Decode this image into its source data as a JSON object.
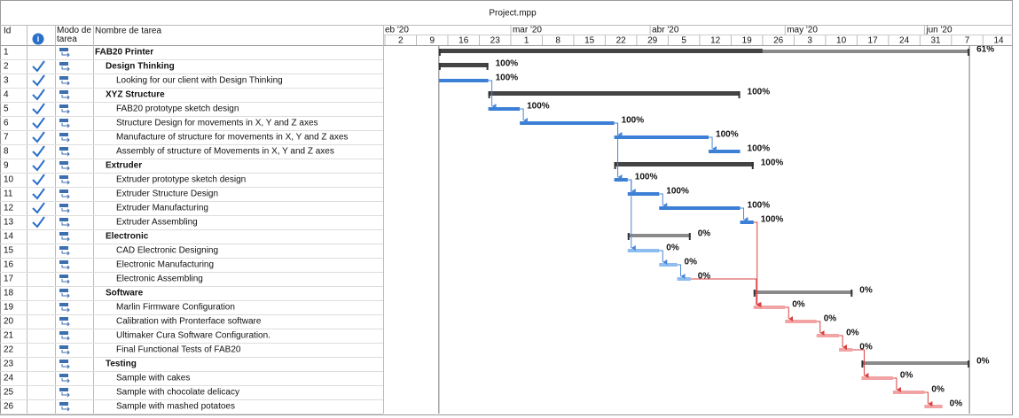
{
  "window_title": "Project.mpp",
  "table": {
    "headers": {
      "id": "Id",
      "mode": "Modo de tarea",
      "name": "Nombre de tarea"
    }
  },
  "timeline": {
    "months": [
      {
        "value": "2020-02-01",
        "label": "eb '20"
      },
      {
        "value": "2020-03-01",
        "label": "mar '20"
      },
      {
        "value": "2020-04-01",
        "label": "abr '20"
      },
      {
        "value": "2020-05-01",
        "label": "may '20"
      },
      {
        "value": "2020-06-01",
        "label": "jun '20"
      }
    ],
    "weeks": [
      {
        "value": "2020-02-02",
        "label": "2"
      },
      {
        "value": "2020-02-09",
        "label": "9"
      },
      {
        "value": "2020-02-16",
        "label": "16"
      },
      {
        "value": "2020-02-23",
        "label": "23"
      },
      {
        "value": "2020-03-01",
        "label": "1"
      },
      {
        "value": "2020-03-08",
        "label": "8"
      },
      {
        "value": "2020-03-15",
        "label": "15"
      },
      {
        "value": "2020-03-22",
        "label": "22"
      },
      {
        "value": "2020-03-29",
        "label": "29"
      },
      {
        "value": "2020-04-05",
        "label": "5"
      },
      {
        "value": "2020-04-12",
        "label": "12"
      },
      {
        "value": "2020-04-19",
        "label": "19"
      },
      {
        "value": "2020-04-26",
        "label": "26"
      },
      {
        "value": "2020-05-03",
        "label": "3"
      },
      {
        "value": "2020-05-10",
        "label": "10"
      },
      {
        "value": "2020-05-17",
        "label": "17"
      },
      {
        "value": "2020-05-24",
        "label": "24"
      },
      {
        "value": "2020-05-31",
        "label": "31"
      },
      {
        "value": "2020-06-07",
        "label": "7"
      },
      {
        "value": "2020-06-14",
        "label": "14"
      }
    ]
  },
  "tasks": [
    {
      "id": 1,
      "name": "FAB20 Printer",
      "level": 0,
      "summary": true,
      "start": "2020-02-14",
      "finish": "2020-06-11",
      "complete": 61,
      "complete_label": "61%",
      "predecessors": []
    },
    {
      "id": 2,
      "name": "Design Thinking",
      "level": 1,
      "summary": true,
      "start": "2020-02-14",
      "finish": "2020-02-25",
      "complete": 100,
      "complete_label": "100%",
      "predecessors": []
    },
    {
      "id": 3,
      "name": "Looking for our client with Design Thinking",
      "level": 2,
      "summary": false,
      "start": "2020-02-14",
      "finish": "2020-02-25",
      "complete": 100,
      "complete_label": "100%",
      "color": "#3c7fd6",
      "predecessors": []
    },
    {
      "id": 4,
      "name": "XYZ Structure",
      "level": 1,
      "summary": true,
      "start": "2020-02-25",
      "finish": "2020-04-21",
      "complete": 100,
      "complete_label": "100%",
      "predecessors": []
    },
    {
      "id": 5,
      "name": "FAB20 prototype sketch design",
      "level": 2,
      "summary": false,
      "start": "2020-02-25",
      "finish": "2020-03-03",
      "complete": 100,
      "complete_label": "100%",
      "color": "#3c7fd6",
      "predecessors": [
        3
      ]
    },
    {
      "id": 6,
      "name": "Structure Design for movements in X, Y and Z axes",
      "level": 2,
      "summary": false,
      "start": "2020-03-03",
      "finish": "2020-03-24",
      "complete": 100,
      "complete_label": "100%",
      "color": "#3c7fd6",
      "predecessors": [
        5
      ]
    },
    {
      "id": 7,
      "name": "Manufacture of structure for movements in X, Y and Z axes",
      "level": 2,
      "summary": false,
      "start": "2020-03-24",
      "finish": "2020-04-14",
      "complete": 100,
      "complete_label": "100%",
      "color": "#3c7fd6",
      "predecessors": [
        6
      ]
    },
    {
      "id": 8,
      "name": "Assembly of structure of Movements in X, Y and Z axes",
      "level": 2,
      "summary": false,
      "start": "2020-04-14",
      "finish": "2020-04-21",
      "complete": 100,
      "complete_label": "100%",
      "color": "#3c7fd6",
      "predecessors": [
        7
      ]
    },
    {
      "id": 9,
      "name": "Extruder",
      "level": 1,
      "summary": true,
      "start": "2020-03-24",
      "finish": "2020-04-24",
      "complete": 100,
      "complete_label": "100%",
      "predecessors": []
    },
    {
      "id": 10,
      "name": "Extruder prototype sketch design",
      "level": 2,
      "summary": false,
      "start": "2020-03-24",
      "finish": "2020-03-27",
      "complete": 100,
      "complete_label": "100%",
      "color": "#3c7fd6",
      "predecessors": [
        6
      ]
    },
    {
      "id": 11,
      "name": "Extruder Structure Design",
      "level": 2,
      "summary": false,
      "start": "2020-03-27",
      "finish": "2020-04-03",
      "complete": 100,
      "complete_label": "100%",
      "color": "#3c7fd6",
      "predecessors": [
        10
      ]
    },
    {
      "id": 12,
      "name": "Extruder Manufacturing",
      "level": 2,
      "summary": false,
      "start": "2020-04-03",
      "finish": "2020-04-21",
      "complete": 100,
      "complete_label": "100%",
      "color": "#3c7fd6",
      "predecessors": [
        11
      ]
    },
    {
      "id": 13,
      "name": "Extruder Assembling",
      "level": 2,
      "summary": false,
      "start": "2020-04-21",
      "finish": "2020-04-24",
      "complete": 100,
      "complete_label": "100%",
      "color": "#3c7fd6",
      "predecessors": [
        12
      ]
    },
    {
      "id": 14,
      "name": "Electronic",
      "level": 1,
      "summary": true,
      "start": "2020-03-27",
      "finish": "2020-04-10",
      "complete": 0,
      "complete_label": "0%",
      "predecessors": []
    },
    {
      "id": 15,
      "name": "CAD Electronic Designing",
      "level": 2,
      "summary": false,
      "start": "2020-03-27",
      "finish": "2020-04-03",
      "complete": 0,
      "complete_label": "0%",
      "color": "#8dbdf0",
      "predecessors": [
        10
      ]
    },
    {
      "id": 16,
      "name": "Electronic Manufacturing",
      "level": 2,
      "summary": false,
      "start": "2020-04-03",
      "finish": "2020-04-07",
      "complete": 0,
      "complete_label": "0%",
      "color": "#8dbdf0",
      "predecessors": [
        15
      ]
    },
    {
      "id": 17,
      "name": "Electronic Assembling",
      "level": 2,
      "summary": false,
      "start": "2020-04-07",
      "finish": "2020-04-10",
      "complete": 0,
      "complete_label": "0%",
      "color": "#8dbdf0",
      "predecessors": [
        16
      ]
    },
    {
      "id": 18,
      "name": "Software",
      "level": 1,
      "summary": true,
      "start": "2020-04-24",
      "finish": "2020-05-16",
      "complete": 0,
      "complete_label": "0%",
      "predecessors": []
    },
    {
      "id": 19,
      "name": "Marlin Firmware Configuration",
      "level": 2,
      "summary": false,
      "start": "2020-04-24",
      "finish": "2020-05-01",
      "complete": 0,
      "complete_label": "0%",
      "color": "#f2a3a3",
      "predecessors": [
        13,
        17
      ]
    },
    {
      "id": 20,
      "name": "Calibration with Pronterface software",
      "level": 2,
      "summary": false,
      "start": "2020-05-01",
      "finish": "2020-05-08",
      "complete": 0,
      "complete_label": "0%",
      "color": "#f2a3a3",
      "predecessors": [
        19
      ]
    },
    {
      "id": 21,
      "name": "Ultimaker Cura Software Configuration.",
      "level": 2,
      "summary": false,
      "start": "2020-05-08",
      "finish": "2020-05-13",
      "complete": 0,
      "complete_label": "0%",
      "color": "#f2a3a3",
      "predecessors": [
        20
      ]
    },
    {
      "id": 22,
      "name": "Final Functional Tests of FAB20",
      "level": 2,
      "summary": false,
      "start": "2020-05-13",
      "finish": "2020-05-16",
      "complete": 0,
      "complete_label": "0%",
      "color": "#f2a3a3",
      "predecessors": [
        21
      ]
    },
    {
      "id": 23,
      "name": "Testing",
      "level": 1,
      "summary": true,
      "start": "2020-05-18",
      "finish": "2020-06-11",
      "complete": 0,
      "complete_label": "0%",
      "predecessors": []
    },
    {
      "id": 24,
      "name": "Sample with cakes",
      "level": 2,
      "summary": false,
      "start": "2020-05-18",
      "finish": "2020-05-25",
      "complete": 0,
      "complete_label": "0%",
      "color": "#f2a3a3",
      "predecessors": [
        22
      ]
    },
    {
      "id": 25,
      "name": "Sample with chocolate delicacy",
      "level": 2,
      "summary": false,
      "start": "2020-05-25",
      "finish": "2020-06-01",
      "complete": 0,
      "complete_label": "0%",
      "color": "#f2a3a3",
      "predecessors": [
        24
      ]
    },
    {
      "id": 26,
      "name": "Sample with mashed potatoes",
      "level": 2,
      "summary": false,
      "start": "2020-06-01",
      "finish": "2020-06-05",
      "complete": 0,
      "complete_label": "0%",
      "color": "#f2a3a3",
      "predecessors": [
        25
      ]
    }
  ]
}
